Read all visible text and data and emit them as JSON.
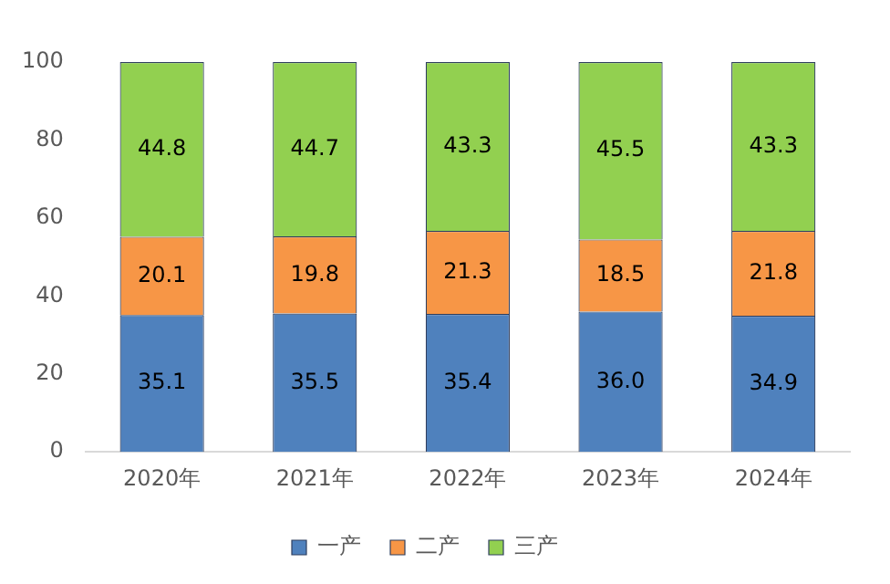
{
  "chart_data": {
    "type": "bar",
    "stacked": true,
    "categories": [
      "2020年",
      "2021年",
      "2022年",
      "2023年",
      "2024年"
    ],
    "series": [
      {
        "name": "一产",
        "color": "#4f81bd",
        "values": [
          35.1,
          35.5,
          35.4,
          36.0,
          34.9
        ],
        "value_labels": [
          "35.1",
          "35.5",
          "35.4",
          "36.0",
          "34.9"
        ]
      },
      {
        "name": "二产",
        "color": "#f79646",
        "values": [
          20.1,
          19.8,
          21.3,
          18.5,
          21.8
        ],
        "value_labels": [
          "20.1",
          "19.8",
          "21.3",
          "18.5",
          "21.8"
        ]
      },
      {
        "name": "三产",
        "color": "#92d050",
        "values": [
          44.8,
          44.7,
          43.3,
          45.5,
          43.3
        ],
        "value_labels": [
          "44.8",
          "44.7",
          "43.3",
          "45.5",
          "43.3"
        ]
      }
    ],
    "ylim": [
      0,
      100
    ],
    "yticks": [
      0,
      20,
      40,
      60,
      80,
      100
    ],
    "grid": false,
    "legend": "bottom"
  }
}
